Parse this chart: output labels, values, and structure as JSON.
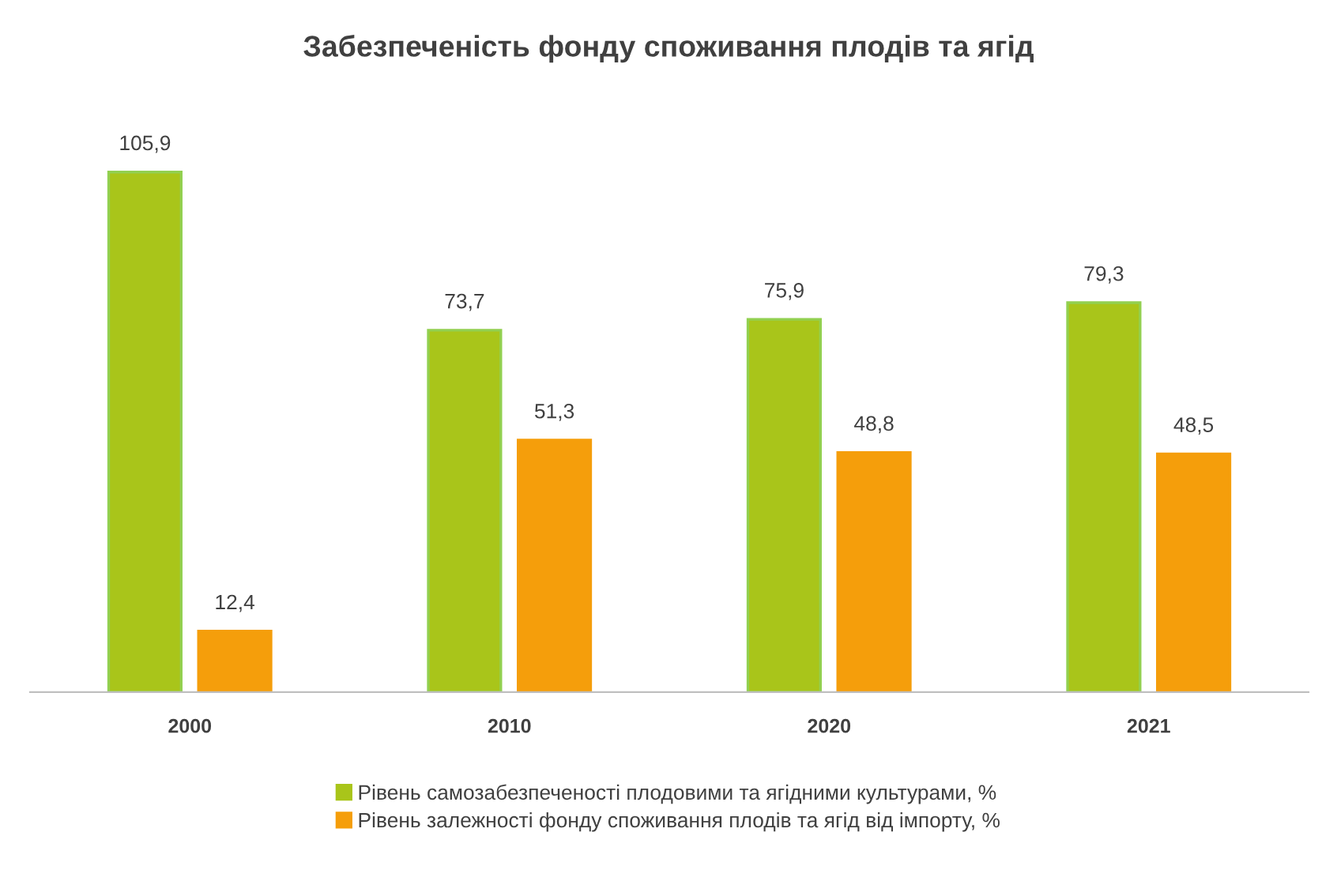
{
  "chart_data": {
    "type": "bar",
    "title": "Забезпеченість фонду споживання плодів та ягід",
    "categories": [
      "2000",
      "2010",
      "2020",
      "2021"
    ],
    "series": [
      {
        "name": "Рівень самозабезпеченості плодовими та ягідними культурами, %",
        "color": "#a9c51a",
        "values": [
          105.9,
          73.7,
          75.9,
          79.3
        ],
        "value_labels": [
          "105,9",
          "73,7",
          "75,9",
          "79,3"
        ]
      },
      {
        "name": "Рівень залежності фонду споживання плодів та ягід від імпорту, %",
        "color": "#f59e0b",
        "values": [
          12.4,
          51.3,
          48.8,
          48.5
        ],
        "value_labels": [
          "12,4",
          "51,3",
          "48,8",
          "48,5"
        ]
      }
    ],
    "tick_labels": "x",
    "legend": "bottom",
    "grid": false
  }
}
